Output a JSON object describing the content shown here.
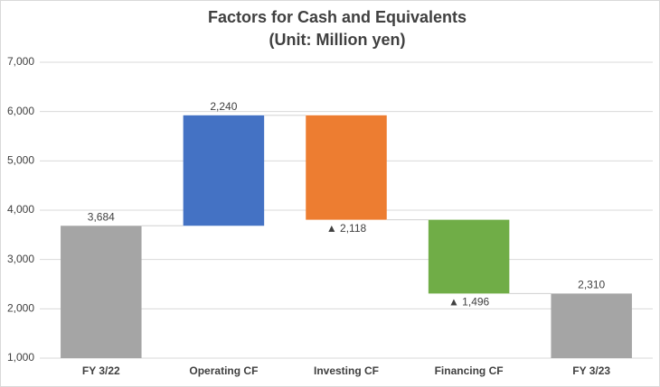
{
  "chart_data": {
    "type": "waterfall",
    "title": "Factors for Cash and Equivalents",
    "subtitle": "(Unit: Million yen)",
    "categories": [
      "FY 3/22",
      "Operating CF",
      "Investing CF",
      "Financing CF",
      "FY 3/23"
    ],
    "values": [
      3684,
      2240,
      -2118,
      -1496,
      2310
    ],
    "value_labels": [
      "3,684",
      "2,240",
      "▲ 2,118",
      "▲ 1,496",
      "2,310"
    ],
    "colors": [
      "#a5a5a5",
      "#4472c4",
      "#ed7d31",
      "#70ad47",
      "#a5a5a5"
    ],
    "ylim": [
      1000,
      7000
    ],
    "yticks": [
      {
        "value": 1000,
        "label": "1,000"
      },
      {
        "value": 2000,
        "label": "2,000"
      },
      {
        "value": 3000,
        "label": "3,000"
      },
      {
        "value": 4000,
        "label": "4,000"
      },
      {
        "value": 5000,
        "label": "5,000"
      },
      {
        "value": 6000,
        "label": "6,000"
      },
      {
        "value": 7000,
        "label": "7,000"
      }
    ],
    "grid": true
  }
}
